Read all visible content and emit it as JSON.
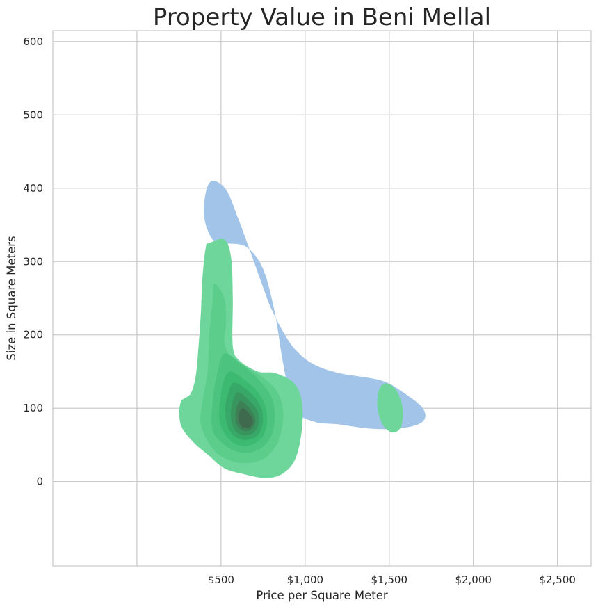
{
  "chart_data": {
    "type": "kde",
    "title": "Property Value in Beni Mellal",
    "xlabel": "Price per Square Meter",
    "ylabel": "Size in Square Meters",
    "xlim": [
      -500,
      2700
    ],
    "ylim": [
      -115,
      615
    ],
    "x_ticks": [
      {
        "value": 500,
        "label": "$500"
      },
      {
        "value": 1000,
        "label": "$1,000"
      },
      {
        "value": 1500,
        "label": "$1,500"
      },
      {
        "value": 2000,
        "label": "$2,000"
      },
      {
        "value": 2500,
        "label": "$2,500"
      }
    ],
    "x_gridlines": [
      0,
      500,
      1000,
      1500,
      2000,
      2500
    ],
    "y_ticks": [
      {
        "value": 0,
        "label": "0"
      },
      {
        "value": 100,
        "label": "100"
      },
      {
        "value": 200,
        "label": "200"
      },
      {
        "value": 300,
        "label": "300"
      },
      {
        "value": 400,
        "label": "400"
      },
      {
        "value": 500,
        "label": "500"
      },
      {
        "value": 600,
        "label": "600"
      }
    ],
    "grid": true,
    "series": [
      {
        "color": "#a1c4e8",
        "levels": [
          {
            "points": [
              [
                450,
                410
              ],
              [
                530,
                398
              ],
              [
                600,
                360
              ],
              [
                680,
                310
              ],
              [
                750,
                265
              ],
              [
                800,
                235
              ],
              [
                880,
                200
              ],
              [
                950,
                178
              ],
              [
                1050,
                160
              ],
              [
                1200,
                148
              ],
              [
                1450,
                138
              ],
              [
                1580,
                122
              ],
              [
                1700,
                100
              ],
              [
                1700,
                82
              ],
              [
                1580,
                73
              ],
              [
                1400,
                72
              ],
              [
                1200,
                78
              ],
              [
                1050,
                82
              ],
              [
                930,
                100
              ],
              [
                870,
                160
              ],
              [
                820,
                230
              ],
              [
                750,
                290
              ],
              [
                650,
                320
              ],
              [
                520,
                325
              ],
              [
                450,
                330
              ],
              [
                400,
                360
              ],
              [
                410,
                395
              ]
            ]
          }
        ]
      },
      {
        "color": "#2ecc71",
        "levels": [
          {
            "color": "#6ed69a",
            "points": [
              [
                430,
                325
              ],
              [
                520,
                330
              ],
              [
                560,
                305
              ],
              [
                570,
                250
              ],
              [
                570,
                185
              ],
              [
                610,
                165
              ],
              [
                720,
                150
              ],
              [
                820,
                148
              ],
              [
                930,
                135
              ],
              [
                980,
                110
              ],
              [
                980,
                70
              ],
              [
                940,
                30
              ],
              [
                860,
                10
              ],
              [
                760,
                5
              ],
              [
                640,
                10
              ],
              [
                520,
                18
              ],
              [
                430,
                35
              ],
              [
                330,
                55
              ],
              [
                260,
                78
              ],
              [
                260,
                108
              ],
              [
                320,
                120
              ],
              [
                350,
                145
              ],
              [
                365,
                180
              ],
              [
                380,
                230
              ],
              [
                390,
                280
              ],
              [
                410,
                320
              ]
            ]
          },
          {
            "color": "#6ed69a",
            "points": [
              [
                1480,
                134
              ],
              [
                1540,
                125
              ],
              [
                1580,
                100
              ],
              [
                1570,
                75
              ],
              [
                1520,
                67
              ],
              [
                1460,
                78
              ],
              [
                1430,
                102
              ],
              [
                1440,
                125
              ]
            ]
          },
          {
            "color": "#5dcd8c",
            "points": [
              [
                460,
                270
              ],
              [
                520,
                250
              ],
              [
                530,
                215
              ],
              [
                520,
                190
              ],
              [
                560,
                170
              ],
              [
                660,
                155
              ],
              [
                760,
                140
              ],
              [
                840,
                120
              ],
              [
                870,
                90
              ],
              [
                840,
                55
              ],
              [
                760,
                32
              ],
              [
                640,
                25
              ],
              [
                520,
                32
              ],
              [
                440,
                48
              ],
              [
                380,
                78
              ],
              [
                390,
                110
              ],
              [
                420,
                150
              ],
              [
                430,
                200
              ],
              [
                450,
                245
              ]
            ]
          },
          {
            "color": "#4cc47f",
            "points": [
              [
                520,
                175
              ],
              [
                620,
                160
              ],
              [
                720,
                140
              ],
              [
                800,
                115
              ],
              [
                820,
                85
              ],
              [
                790,
                58
              ],
              [
                710,
                42
              ],
              [
                610,
                40
              ],
              [
                520,
                50
              ],
              [
                450,
                70
              ],
              [
                450,
                110
              ],
              [
                480,
                150
              ]
            ]
          },
          {
            "color": "#3dba72",
            "points": [
              [
                560,
                150
              ],
              [
                660,
                135
              ],
              [
                740,
                115
              ],
              [
                775,
                88
              ],
              [
                750,
                62
              ],
              [
                680,
                50
              ],
              [
                600,
                50
              ],
              [
                530,
                62
              ],
              [
                490,
                85
              ],
              [
                500,
                120
              ],
              [
                520,
                140
              ]
            ]
          },
          {
            "color": "#38a868",
            "points": [
              [
                580,
                135
              ],
              [
                670,
                122
              ],
              [
                730,
                105
              ],
              [
                750,
                85
              ],
              [
                725,
                65
              ],
              [
                660,
                57
              ],
              [
                590,
                60
              ],
              [
                540,
                75
              ],
              [
                525,
                100
              ],
              [
                545,
                122
              ]
            ]
          },
          {
            "color": "#39955e",
            "points": [
              [
                600,
                122
              ],
              [
                670,
                110
              ],
              [
                715,
                97
              ],
              [
                725,
                82
              ],
              [
                700,
                68
              ],
              [
                645,
                63
              ],
              [
                590,
                68
              ],
              [
                560,
                85
              ],
              [
                565,
                105
              ]
            ]
          },
          {
            "color": "#3d8056",
            "points": [
              [
                615,
                110
              ],
              [
                670,
                100
              ],
              [
                700,
                88
              ],
              [
                700,
                78
              ],
              [
                670,
                70
              ],
              [
                625,
                70
              ],
              [
                590,
                80
              ],
              [
                590,
                98
              ]
            ]
          },
          {
            "color": "#3f6a4d",
            "points": [
              [
                630,
                100
              ],
              [
                670,
                92
              ],
              [
                690,
                82
              ],
              [
                670,
                74
              ],
              [
                630,
                74
              ],
              [
                605,
                83
              ],
              [
                610,
                95
              ]
            ]
          }
        ]
      }
    ]
  }
}
